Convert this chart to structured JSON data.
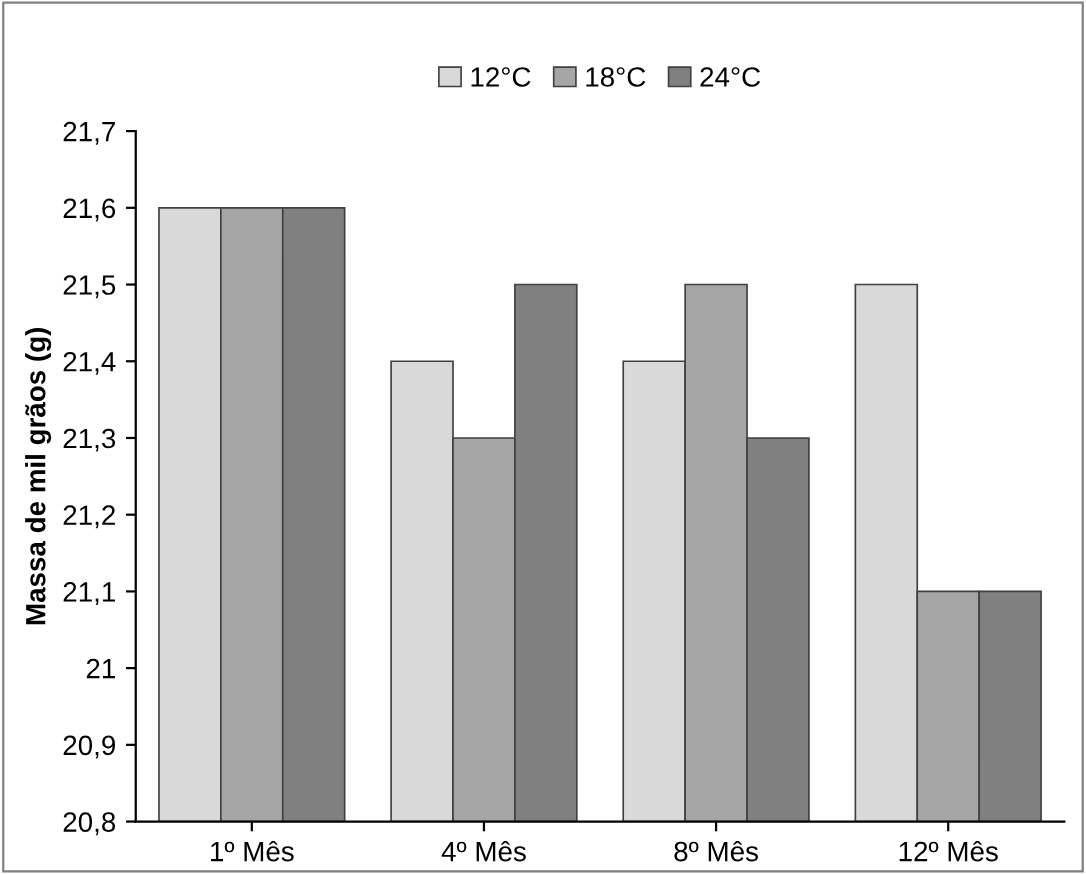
{
  "chart_data": {
    "type": "bar",
    "ylabel": "Massa de mil grãos (g)",
    "categories": [
      "1º Mês",
      "4º Mês",
      "8º Mês",
      "12º Mês"
    ],
    "series": [
      {
        "name": "12°C",
        "color": "#d9d9d9",
        "values": [
          21.6,
          21.4,
          21.4,
          21.5
        ]
      },
      {
        "name": "18°C",
        "color": "#a6a6a6",
        "values": [
          21.6,
          21.3,
          21.5,
          21.1
        ]
      },
      {
        "name": "24°C",
        "color": "#808080",
        "values": [
          21.6,
          21.5,
          21.3,
          21.1
        ]
      }
    ],
    "ylim": [
      20.8,
      21.7
    ],
    "yticks": [
      {
        "value": 20.8,
        "label": "20,8"
      },
      {
        "value": 20.9,
        "label": "20,9"
      },
      21,
      {
        "value": 21.1,
        "label": "21,1"
      },
      {
        "value": 21.2,
        "label": "21,2"
      },
      {
        "value": 21.3,
        "label": "21,3"
      },
      {
        "value": 21.4,
        "label": "21,4"
      },
      {
        "value": 21.5,
        "label": "21,5"
      },
      {
        "value": 21.6,
        "label": "21,6"
      },
      {
        "value": 21.7,
        "label": "21,7"
      }
    ],
    "grid": false,
    "legend": "top"
  }
}
